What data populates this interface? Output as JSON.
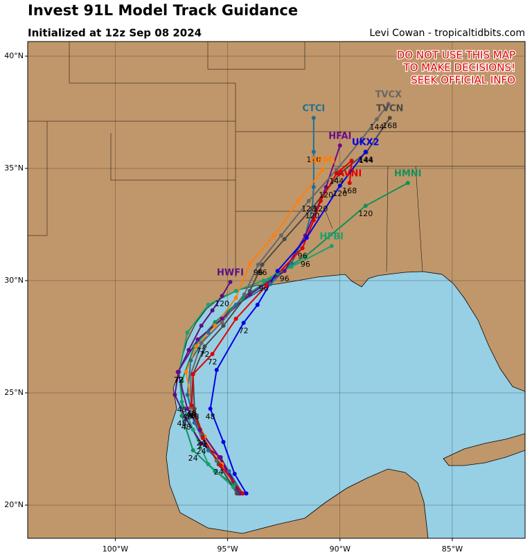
{
  "map": {
    "title": "Invest 91L Model Track Guidance",
    "subtitle": "Initialized at 12z Sep 08 2024",
    "credit": "Levi Cowan - tropicaltidbits.com",
    "warning": [
      "DO NOT USE THIS MAP",
      "TO MAKE DECISIONS!",
      "SEEK OFFICIAL INFO"
    ],
    "lonlim": [
      -103.9,
      -81.76
    ],
    "latlim": [
      18.52,
      40.65
    ],
    "lon_ticks": [
      {
        "value": -100,
        "label": "100°W"
      },
      {
        "value": -95,
        "label": "95°W"
      },
      {
        "value": -90,
        "label": "90°W"
      },
      {
        "value": -85,
        "label": "85°W"
      }
    ],
    "lat_ticks": [
      {
        "value": 20,
        "label": "20°N"
      },
      {
        "value": 25,
        "label": "25°N"
      },
      {
        "value": 30,
        "label": "30°N"
      },
      {
        "value": 35,
        "label": "35°N"
      },
      {
        "value": 40,
        "label": "40°N"
      }
    ],
    "tracks": [
      {
        "name": "CTCI",
        "color": "#1f6f94",
        "points": [
          {
            "lon": -94.35,
            "lat": 20.52
          },
          {
            "lon": -94.94,
            "lat": 21.51
          },
          {
            "lon": -95.86,
            "lat": 22.44
          },
          {
            "lon": -96.48,
            "lat": 23.67
          },
          {
            "lon": -96.79,
            "lat": 24.91
          },
          {
            "lon": -96.64,
            "lat": 26.45
          },
          {
            "lon": -95.86,
            "lat": 27.69
          },
          {
            "lon": -94.63,
            "lat": 28.92
          },
          {
            "lon": -93.09,
            "lat": 29.85
          },
          {
            "lon": -92.16,
            "lat": 30.77
          },
          {
            "lon": -91.54,
            "lat": 32.01
          },
          {
            "lon": -91.23,
            "lat": 33.24
          },
          {
            "lon": -91.17,
            "lat": 34.17
          },
          {
            "lon": -91.17,
            "lat": 35.74,
            "label": 120
          },
          {
            "lon": -91.17,
            "lat": 37.25
          }
        ]
      },
      {
        "name": "HMNI",
        "color": "#10905a",
        "points": [
          {
            "lon": -94.69,
            "lat": 20.9
          },
          {
            "lon": -95.56,
            "lat": 21.51
          },
          {
            "lon": -96.54,
            "lat": 22.44,
            "label": 24
          },
          {
            "lon": -97.04,
            "lat": 23.98,
            "label": 48
          },
          {
            "lon": -97.04,
            "lat": 25.52
          },
          {
            "lon": -96.48,
            "lat": 27.07
          },
          {
            "lon": -95.56,
            "lat": 28.15
          },
          {
            "lon": -94.32,
            "lat": 29.23
          },
          {
            "lon": -92.78,
            "lat": 30.31
          },
          {
            "lon": -91.54,
            "lat": 31.08,
            "label": 96
          },
          {
            "lon": -88.86,
            "lat": 33.33,
            "label": 120
          },
          {
            "lon": -86.98,
            "lat": 34.35
          }
        ]
      },
      {
        "name": "HFBI",
        "color": "#1aa070",
        "points": [
          {
            "lon": -94.75,
            "lat": 20.8
          },
          {
            "lon": -95.86,
            "lat": 21.82
          },
          {
            "lon": -96.54,
            "lat": 23.36
          },
          {
            "lon": -97.04,
            "lat": 24.6,
            "label": 48
          },
          {
            "lon": -97.16,
            "lat": 25.93,
            "label": 72
          },
          {
            "lon": -96.79,
            "lat": 27.69
          },
          {
            "lon": -95.86,
            "lat": 28.92
          },
          {
            "lon": -94.63,
            "lat": 29.54
          },
          {
            "lon": -93.4,
            "lat": 30.0,
            "label": 96
          },
          {
            "lon": -92.16,
            "lat": 30.62
          },
          {
            "lon": -90.37,
            "lat": 31.54
          }
        ]
      },
      {
        "name": "AEMI",
        "color": "#ff7f0e",
        "points": [
          {
            "lon": -94.48,
            "lat": 20.52
          },
          {
            "lon": -95.25,
            "lat": 21.82
          },
          {
            "lon": -96.02,
            "lat": 23.06
          },
          {
            "lon": -96.57,
            "lat": 24.29
          },
          {
            "lon": -96.85,
            "lat": 25.93
          },
          {
            "lon": -96.39,
            "lat": 27.07
          },
          {
            "lon": -95.56,
            "lat": 27.99
          },
          {
            "lon": -94.63,
            "lat": 29.23
          },
          {
            "lon": -94.01,
            "lat": 30.77
          },
          {
            "lon": -92.93,
            "lat": 32.01
          },
          {
            "lon": -91.85,
            "lat": 33.55
          },
          {
            "lon": -90.77,
            "lat": 34.94
          }
        ]
      },
      {
        "name": "HWFI",
        "color": "#5a1080",
        "points": [
          {
            "lon": -94.44,
            "lat": 20.52
          },
          {
            "lon": -95.31,
            "lat": 22.13
          },
          {
            "lon": -96.17,
            "lat": 22.75,
            "label": 24
          },
          {
            "lon": -96.85,
            "lat": 23.83,
            "label": 48
          },
          {
            "lon": -97.35,
            "lat": 24.91
          },
          {
            "lon": -97.19,
            "lat": 25.93,
            "label": 72
          },
          {
            "lon": -96.73,
            "lat": 26.91
          },
          {
            "lon": -96.17,
            "lat": 27.99
          },
          {
            "lon": -95.68,
            "lat": 28.67
          },
          {
            "lon": -95.25,
            "lat": 29.32,
            "label": 120
          },
          {
            "lon": -94.88,
            "lat": 29.94
          }
        ]
      },
      {
        "name": "HFAI",
        "color": "#6a0a8a",
        "points": [
          {
            "lon": -94.51,
            "lat": 20.52
          },
          {
            "lon": -95.37,
            "lat": 22.13
          },
          {
            "lon": -96.23,
            "lat": 23.36
          },
          {
            "lon": -96.79,
            "lat": 24.29,
            "label": 48
          },
          {
            "lon": -97.22,
            "lat": 25.93
          },
          {
            "lon": -96.33,
            "lat": 27.38
          },
          {
            "lon": -95.25,
            "lat": 28.3
          },
          {
            "lon": -94.01,
            "lat": 29.38
          },
          {
            "lon": -92.47,
            "lat": 30.43,
            "label": 96
          },
          {
            "lon": -91.54,
            "lat": 32.01
          },
          {
            "lon": -90.62,
            "lat": 34.17,
            "label": 120
          },
          {
            "lon": -90.0,
            "lat": 36.02
          }
        ]
      },
      {
        "name": "TVCX",
        "color": "#666666",
        "points": [
          {
            "lon": -94.6,
            "lat": 20.52
          },
          {
            "lon": -95.49,
            "lat": 21.97
          },
          {
            "lon": -96.17,
            "lat": 23.12,
            "label": 24
          },
          {
            "lon": -96.64,
            "lat": 24.35,
            "label": 48
          },
          {
            "lon": -96.64,
            "lat": 25.83
          },
          {
            "lon": -96.17,
            "lat": 27.22,
            "label": 72
          },
          {
            "lon": -95.25,
            "lat": 28.15
          },
          {
            "lon": -94.26,
            "lat": 29.38
          },
          {
            "lon": -93.64,
            "lat": 30.71,
            "label": 96
          },
          {
            "lon": -92.62,
            "lat": 32.01
          },
          {
            "lon": -91.39,
            "lat": 33.55,
            "label": 120
          },
          {
            "lon": -90.15,
            "lat": 34.94
          },
          {
            "lon": -89.01,
            "lat": 36.33
          },
          {
            "lon": -88.36,
            "lat": 37.19,
            "label": 144
          },
          {
            "lon": -87.84,
            "lat": 37.87
          }
        ]
      },
      {
        "name": "TVCN",
        "color": "#4a4a4a",
        "points": [
          {
            "lon": -94.57,
            "lat": 20.52
          },
          {
            "lon": -95.4,
            "lat": 21.82,
            "label": 24
          },
          {
            "lon": -96.11,
            "lat": 23.06
          },
          {
            "lon": -96.48,
            "lat": 24.29,
            "label": 48
          },
          {
            "lon": -96.54,
            "lat": 25.83
          },
          {
            "lon": -96.02,
            "lat": 27.07,
            "label": 72
          },
          {
            "lon": -95.19,
            "lat": 27.99
          },
          {
            "lon": -94.01,
            "lat": 29.54
          },
          {
            "lon": -93.46,
            "lat": 30.71,
            "label": 96
          },
          {
            "lon": -92.47,
            "lat": 31.85
          },
          {
            "lon": -91.23,
            "lat": 33.24,
            "label": 120
          },
          {
            "lon": -90.0,
            "lat": 34.78
          },
          {
            "lon": -88.83,
            "lat": 35.71,
            "label": 144
          },
          {
            "lon": -87.78,
            "lat": 37.25,
            "label": 168
          }
        ]
      },
      {
        "name": "AVNI",
        "color": "#e00000",
        "points": [
          {
            "lon": -94.32,
            "lat": 20.52
          },
          {
            "lon": -95.31,
            "lat": 21.76
          },
          {
            "lon": -96.11,
            "lat": 22.99,
            "label": 24
          },
          {
            "lon": -96.6,
            "lat": 24.44,
            "label": 48
          },
          {
            "lon": -96.54,
            "lat": 25.83
          },
          {
            "lon": -95.68,
            "lat": 26.73,
            "label": 72
          },
          {
            "lon": -94.63,
            "lat": 28.3
          },
          {
            "lon": -93.27,
            "lat": 29.78
          },
          {
            "lon": -91.67,
            "lat": 31.45,
            "label": 96
          },
          {
            "lon": -91.17,
            "lat": 32.69
          },
          {
            "lon": -90.86,
            "lat": 33.55,
            "label": 120
          },
          {
            "lon": -90.15,
            "lat": 34.78,
            "label": 144
          },
          {
            "lon": -89.48,
            "lat": 35.34
          },
          {
            "lon": -89.57,
            "lat": 34.35,
            "label": 168
          }
        ]
      },
      {
        "name": "UKX2",
        "color": "#0000e6",
        "points": [
          {
            "lon": -94.17,
            "lat": 20.52
          },
          {
            "lon": -94.69,
            "lat": 21.39
          },
          {
            "lon": -95.19,
            "lat": 22.81
          },
          {
            "lon": -95.77,
            "lat": 24.29,
            "label": 48
          },
          {
            "lon": -95.49,
            "lat": 26.02
          },
          {
            "lon": -94.29,
            "lat": 28.12,
            "label": 72
          },
          {
            "lon": -93.67,
            "lat": 28.92
          },
          {
            "lon": -92.78,
            "lat": 30.43
          },
          {
            "lon": -91.48,
            "lat": 31.91
          },
          {
            "lon": -90.0,
            "lat": 34.23,
            "label": 120
          },
          {
            "lon": -88.86,
            "lat": 35.74,
            "label": 144
          }
        ]
      }
    ]
  }
}
